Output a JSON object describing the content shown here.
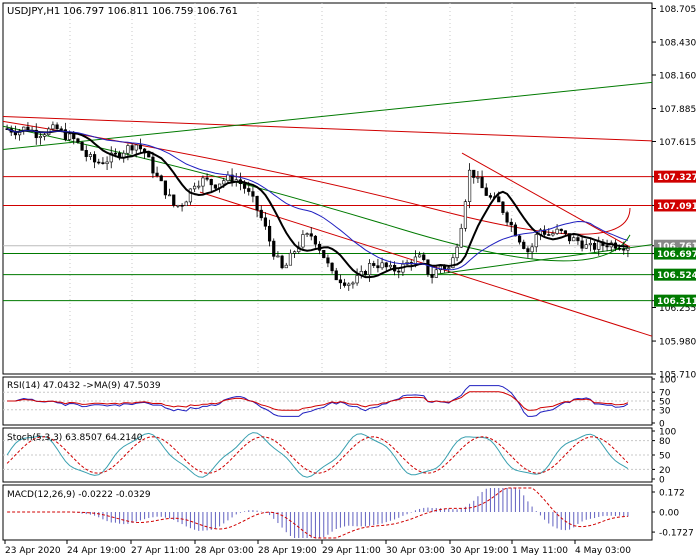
{
  "colors": {
    "bg": "#ffffff",
    "frame": "#000000",
    "grid": "#c8c8c8",
    "red": "#d00000",
    "green": "#007a00",
    "blue": "#2020c0",
    "black": "#000000",
    "label_red": "#d00000",
    "label_green": "#007a00",
    "label_gray": "#888888",
    "cyan": "#3aa0b0"
  },
  "main": {
    "header": {
      "symbol": "USDJPY,H1",
      "ohlc": "106.797 106.811 106.759 106.761"
    },
    "price_axis": [
      "108.705",
      "108.430",
      "108.160",
      "107.885",
      "107.615",
      "107.327",
      "107.091",
      "106.761",
      "106.697",
      "106.524",
      "106.311",
      "106.255",
      "105.980",
      "105.710"
    ],
    "y_range": [
      105.71,
      108.75
    ],
    "level_labels": [
      {
        "value": "107.327",
        "price": 107.327,
        "color": "red"
      },
      {
        "value": "107.091",
        "price": 107.091,
        "color": "red"
      },
      {
        "value": "106.761",
        "price": 106.761,
        "color": "gray"
      },
      {
        "value": "106.697",
        "price": 106.697,
        "color": "green"
      },
      {
        "value": "106.524",
        "price": 106.524,
        "color": "green"
      },
      {
        "value": "106.311",
        "price": 106.311,
        "color": "green"
      }
    ]
  },
  "rsi": {
    "label": "RSI(14) 47.0432 ->MA(9) 47.5039",
    "axis": [
      "100",
      "70",
      "50",
      "30",
      "0"
    ]
  },
  "stoch": {
    "label": "Stoch(5,3,3) 63.8507 64.2140",
    "axis": [
      "100",
      "80",
      "50",
      "20",
      "0"
    ]
  },
  "macd": {
    "label": "MACD(12,26,9) -0.0222 -0.0329",
    "axis": [
      "0.172",
      "0.00",
      "-0.1727"
    ]
  },
  "time_axis": [
    "23 Apr 2020",
    "24 Apr 19:00",
    "27 Apr 11:00",
    "28 Apr 03:00",
    "28 Apr 19:00",
    "29 Apr 11:00",
    "30 Apr 03:00",
    "30 Apr 19:00",
    "1 May 11:00",
    "4 May 03:00"
  ],
  "chart_data": {
    "type": "candlestick",
    "symbol": "USDJPY,H1",
    "ylim": [
      105.71,
      108.75
    ],
    "close_path": [
      107.72,
      107.7,
      107.73,
      107.68,
      107.7,
      107.72,
      107.66,
      107.62,
      107.5,
      107.44,
      107.46,
      107.5,
      107.55,
      107.6,
      107.52,
      107.35,
      107.22,
      107.08,
      107.12,
      107.28,
      107.3,
      107.26,
      107.3,
      107.32,
      107.25,
      107.12,
      106.95,
      106.72,
      106.55,
      106.7,
      106.82,
      106.85,
      106.7,
      106.52,
      106.48,
      106.45,
      106.52,
      106.62,
      106.6,
      106.56,
      106.58,
      106.64,
      106.66,
      106.5,
      106.6,
      106.57,
      106.9,
      107.4,
      107.25,
      107.15,
      107.1,
      106.95,
      106.82,
      106.7,
      106.9,
      106.85,
      106.88,
      106.82,
      106.8,
      106.74,
      106.76,
      106.78,
      106.77,
      106.76
    ],
    "levels": [
      107.327,
      107.091,
      106.761,
      106.697,
      106.524,
      106.311
    ]
  }
}
